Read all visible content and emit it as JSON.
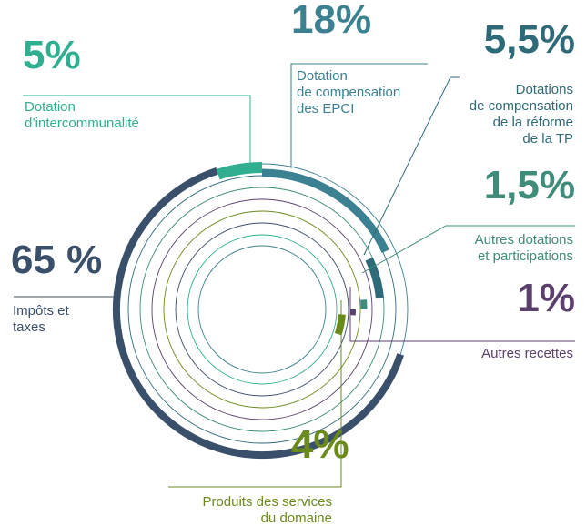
{
  "chart_data": {
    "type": "radial",
    "categories": [
      [
        "Dotation",
        "de compensation",
        "des EPCI"
      ],
      [
        "Dotations",
        "de compensation",
        "de la réforme",
        "de la TP"
      ],
      [
        "Autres dotations",
        "et participations"
      ],
      [
        "Autres recettes"
      ],
      [
        "Produits des services",
        "du domaine"
      ],
      [
        "Impôts et",
        "taxes"
      ],
      [
        "Dotation",
        "d’intercommunalité"
      ]
    ],
    "values": [
      18,
      5.5,
      1.5,
      1,
      4,
      65,
      5
    ],
    "value_labels": [
      "18%",
      "5,5%",
      "1,5%",
      "1%",
      "4%",
      "65 %",
      "5%"
    ],
    "colors": [
      "#3b8191",
      "#2e6a78",
      "#3f8c7a",
      "#5b3f6d",
      "#6b8a1c",
      "#3a4f6a",
      "#2faf90"
    ]
  }
}
